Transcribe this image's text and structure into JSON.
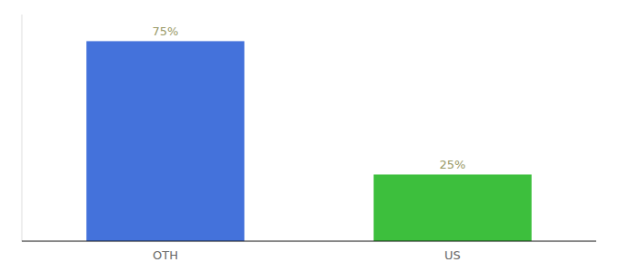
{
  "chart_data": {
    "type": "bar",
    "categories": [
      "OTH",
      "US"
    ],
    "values": [
      75,
      25
    ],
    "value_labels": [
      "75%",
      "25%"
    ],
    "colors": [
      "#4472db",
      "#3dbf3d"
    ],
    "ylim": [
      0,
      85
    ],
    "data_labels": true,
    "tick_labels": "x",
    "grid": false
  }
}
